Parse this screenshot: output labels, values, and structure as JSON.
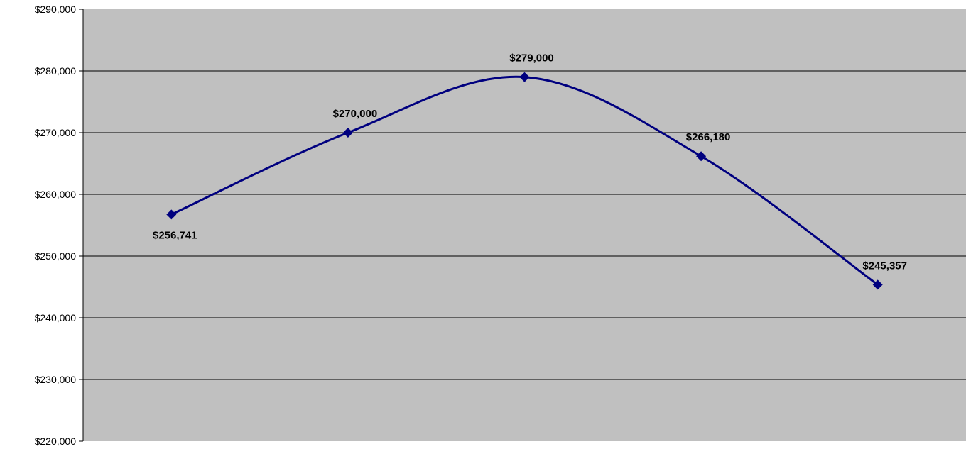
{
  "chart_data": {
    "type": "line",
    "title": "",
    "xlabel": "",
    "ylabel": "",
    "ylim": [
      220000,
      290000
    ],
    "yticks": [
      220000,
      230000,
      240000,
      250000,
      260000,
      270000,
      280000,
      290000
    ],
    "ytick_labels": [
      "$220,000",
      "$230,000",
      "$240,000",
      "$250,000",
      "$260,000",
      "$270,000",
      "$280,000",
      "$290,000"
    ],
    "grid": true,
    "legend": "none",
    "smoothed": true,
    "series": [
      {
        "values": [
          256741,
          270000,
          279000,
          266180,
          245357
        ],
        "labels": [
          "$256,741",
          "$270,000",
          "$279,000",
          "$266,180",
          "$245,357"
        ],
        "label_positions": [
          "below",
          "above",
          "above",
          "above",
          "above"
        ],
        "color": "#00007f",
        "marker": "diamond"
      }
    ],
    "plot_background": "#c0c0c0",
    "gridline_color": "#000000"
  }
}
